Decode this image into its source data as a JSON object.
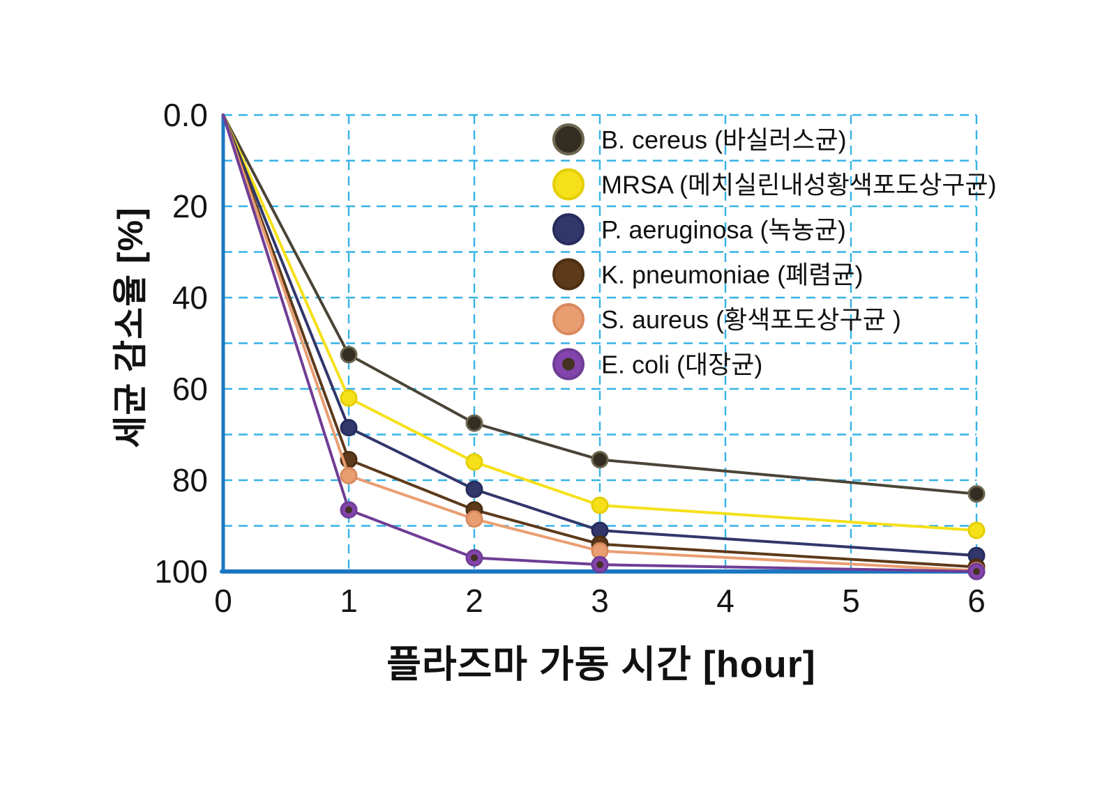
{
  "chart_data": {
    "type": "line",
    "title": "",
    "xlabel": "플라즈마 가동 시간 [hour]",
    "ylabel": "세균 감소율 [%]",
    "xlim": [
      0,
      6
    ],
    "ylim": [
      0,
      100
    ],
    "y_inverted": true,
    "x": [
      0,
      1,
      2,
      3,
      6
    ],
    "x_tick_values": [
      0,
      1,
      2,
      3,
      4,
      5,
      6
    ],
    "x_tick_labels": [
      "0",
      "1",
      "2",
      "3",
      "4",
      "5",
      "6"
    ],
    "y_tick_values": [
      0,
      20,
      40,
      60,
      80,
      100
    ],
    "y_tick_labels": [
      "0.0",
      "20",
      "40",
      "60",
      "80",
      "100"
    ],
    "grid": {
      "color": "#35b2e5",
      "dash": "13 9",
      "y_step": 10,
      "on": true
    },
    "axis_color": "#1b77c2",
    "tick_color": "#141414",
    "legend_position": "top-right-inside",
    "series": [
      {
        "label": "B. cereus (바실러스균)",
        "line": "#4a4437",
        "fill": "#332d22",
        "edge": "#6d6650",
        "center": null,
        "values": [
          0,
          52.5,
          67.5,
          75.5,
          83
        ]
      },
      {
        "label": "MRSA (메치실린내성황색포도상구균)",
        "line": "#f6e019",
        "fill": "#f6e019",
        "edge": "#e4ce05",
        "center": null,
        "values": [
          0,
          62,
          76,
          85.5,
          91
        ]
      },
      {
        "label": "P. aeruginosa (녹농균)",
        "line": "#31376b",
        "fill": "#31376b",
        "edge": "#262c5c",
        "center": null,
        "values": [
          0,
          68.5,
          82,
          91,
          96.5
        ]
      },
      {
        "label": "K. pneumoniae (폐렴균)",
        "line": "#5d3a1a",
        "fill": "#5d3a1a",
        "edge": "#4c2e12",
        "center": null,
        "values": [
          0,
          75.5,
          86.5,
          94,
          99
        ]
      },
      {
        "label": "S. aureus (황색포도상구균 )",
        "line": "#e99e72",
        "fill": "#e99e72",
        "edge": "#d98a5e",
        "center": null,
        "values": [
          0,
          79,
          88.5,
          95.5,
          99.8
        ]
      },
      {
        "label": "E. coli  (대장균)",
        "line": "#6f3d95",
        "fill": "#8344ad",
        "edge": "#6f3d95",
        "center": "#443122",
        "values": [
          0,
          86.5,
          97,
          98.5,
          100
        ]
      }
    ]
  }
}
